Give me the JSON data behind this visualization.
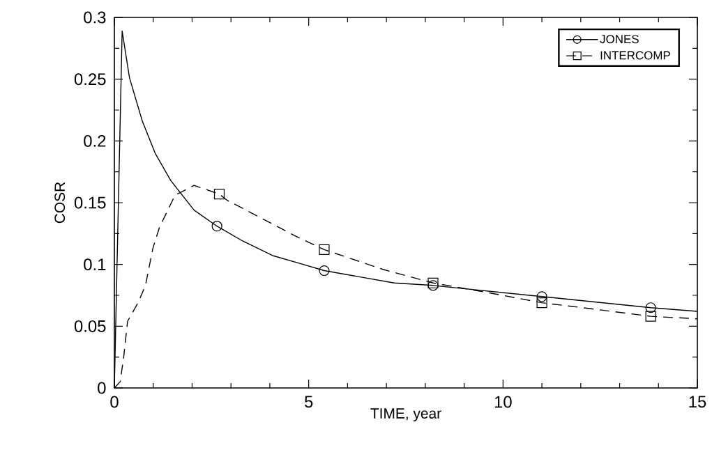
{
  "chart_data": {
    "type": "line",
    "xlabel": "TIME, year",
    "ylabel": "COSR",
    "xlim": [
      0,
      15
    ],
    "xticks": [
      0,
      5,
      10,
      15
    ],
    "ylim": [
      0,
      0.3
    ],
    "yticks": [
      0,
      0.05,
      0.1,
      0.15,
      0.2,
      0.25,
      0.3
    ],
    "grid": false,
    "legend": "top right",
    "series": [
      {
        "name": "JONES",
        "color": "#000000",
        "line_style": "solid",
        "x": [
          0,
          0.2,
          0.39,
          0.72,
          1.05,
          1.45,
          2.05,
          2.64,
          3.3,
          4.09,
          4.75,
          5.4,
          7.2,
          8.2,
          11,
          13.8,
          15
        ],
        "values": [
          0,
          0.289,
          0.251,
          0.216,
          0.19,
          0.168,
          0.144,
          0.131,
          0.119,
          0.107,
          0.101,
          0.095,
          0.085,
          0.083,
          0.074,
          0.065,
          0.062
        ]
      },
      {
        "name": "INTERCOMP",
        "color": "#000000",
        "line_style": "dashed",
        "x": [
          0,
          0.15,
          0.24,
          0.34,
          0.61,
          0.8,
          0.99,
          1.16,
          1.56,
          2.05,
          2.7,
          2.9,
          4.72,
          5.4,
          6.91,
          8.2,
          9.65,
          11,
          12.3,
          13.8,
          15
        ],
        "values": [
          0,
          0.005,
          0.025,
          0.054,
          0.069,
          0.083,
          0.113,
          0.13,
          0.156,
          0.164,
          0.157,
          0.152,
          0.122,
          0.112,
          0.096,
          0.085,
          0.077,
          0.069,
          0.064,
          0.058,
          0.056
        ]
      },
      {
        "type": "scatter",
        "color": "#000000",
        "marker": "circle",
        "x": [
          2.64,
          5.4,
          8.2,
          11,
          13.8
        ],
        "values": [
          0.131,
          0.095,
          0.083,
          0.074,
          0.065
        ]
      },
      {
        "type": "scatter",
        "color": "#000000",
        "marker": "square",
        "x": [
          2.7,
          5.4,
          8.2,
          11,
          13.8
        ],
        "values": [
          0.157,
          0.112,
          0.085,
          0.069,
          0.058
        ]
      }
    ]
  }
}
